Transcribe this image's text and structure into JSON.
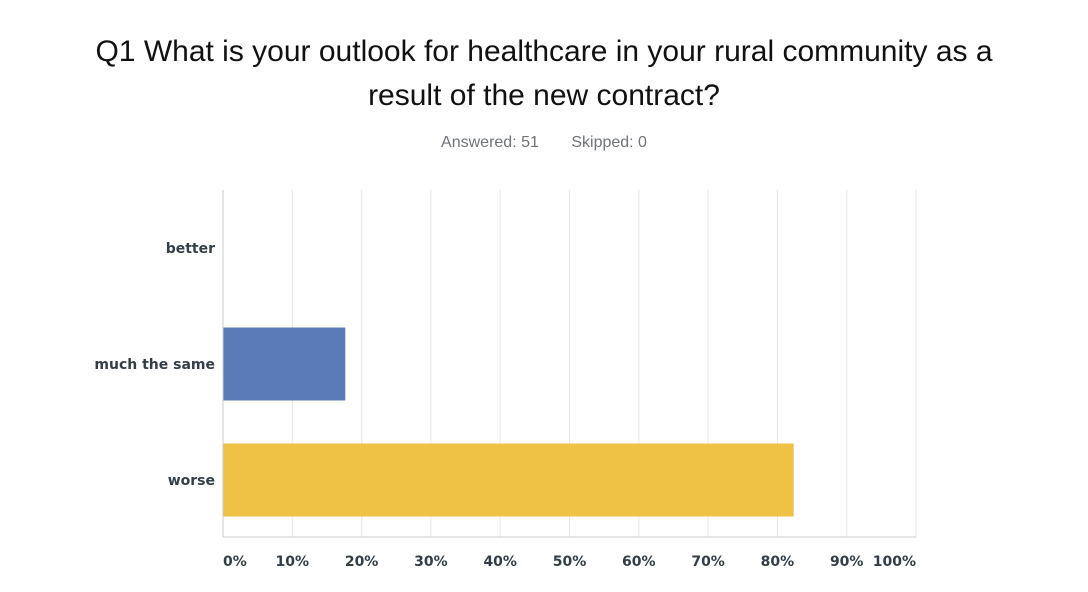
{
  "question": {
    "title_line1": "Q1 What is your outlook for healthcare in your rural community as a",
    "title_line2": "result of the new contract?",
    "answered": "Answered: 51",
    "skipped": "Skipped: 0"
  },
  "chart_data": {
    "type": "bar",
    "orientation": "horizontal",
    "categories": [
      "better",
      "much the same",
      "worse"
    ],
    "values": [
      0,
      17.65,
      82.35
    ],
    "colors": [
      "#5b7bb8",
      "#5b7bb8",
      "#efc144"
    ],
    "xlim": [
      0,
      100
    ],
    "xticks": [
      "0%",
      "10%",
      "20%",
      "30%",
      "40%",
      "50%",
      "60%",
      "70%",
      "80%",
      "90%",
      "100%"
    ],
    "grid": true
  }
}
